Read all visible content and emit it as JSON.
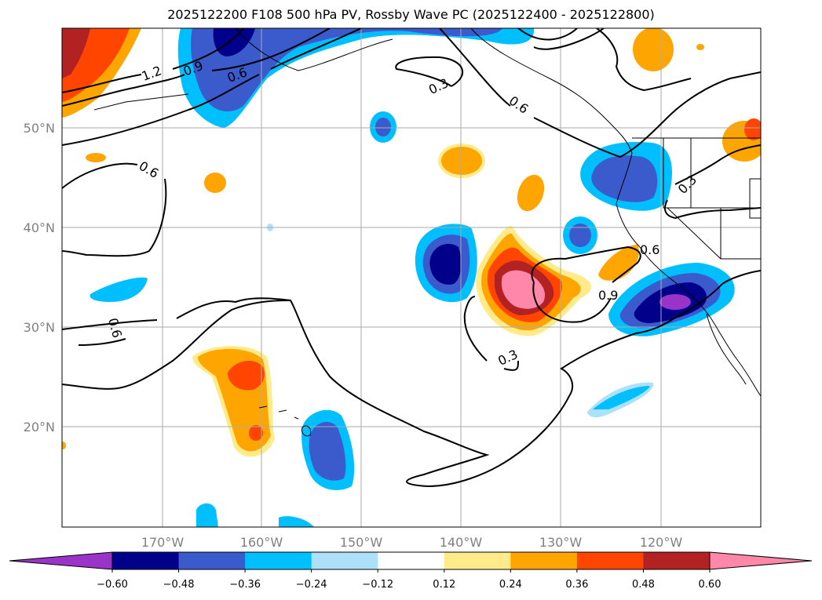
{
  "title": "2025122200 F108 500 hPa PV, Rossby Wave PC (2025122400 - 2025122800)",
  "map": {
    "lon_range": [
      -180,
      -110
    ],
    "lat_range": [
      10,
      60
    ],
    "lon_ticks": [
      {
        "value": -170,
        "label": "170°W"
      },
      {
        "value": -160,
        "label": "160°W"
      },
      {
        "value": -150,
        "label": "150°W"
      },
      {
        "value": -140,
        "label": "140°W"
      },
      {
        "value": -130,
        "label": "130°W"
      },
      {
        "value": -120,
        "label": "120°W"
      }
    ],
    "lat_ticks": [
      {
        "value": 20,
        "label": "20°N"
      },
      {
        "value": 30,
        "label": "30°N"
      },
      {
        "value": 40,
        "label": "40°N"
      },
      {
        "value": 50,
        "label": "50°N"
      }
    ],
    "grid": true,
    "contour_labels": [
      "1.2",
      "0.9",
      "0.6",
      "0.3",
      "0.6",
      "0.3",
      "0.6",
      "0.6",
      "0.9",
      "0.3",
      "0.6"
    ]
  },
  "colorbar": {
    "ticks": [
      "−0.60",
      "−0.48",
      "−0.36",
      "−0.24",
      "−0.12",
      "0.12",
      "0.24",
      "0.36",
      "0.48",
      "0.60"
    ],
    "colors": [
      "#9a34c8",
      "#00008b",
      "#3b5bcc",
      "#00bfff",
      "#ade1fa",
      "#ffffff",
      "#ffeb8a",
      "#ffa500",
      "#ff4500",
      "#b22222",
      "#ff88aa",
      "#ff88aa"
    ],
    "extend": "both"
  }
}
